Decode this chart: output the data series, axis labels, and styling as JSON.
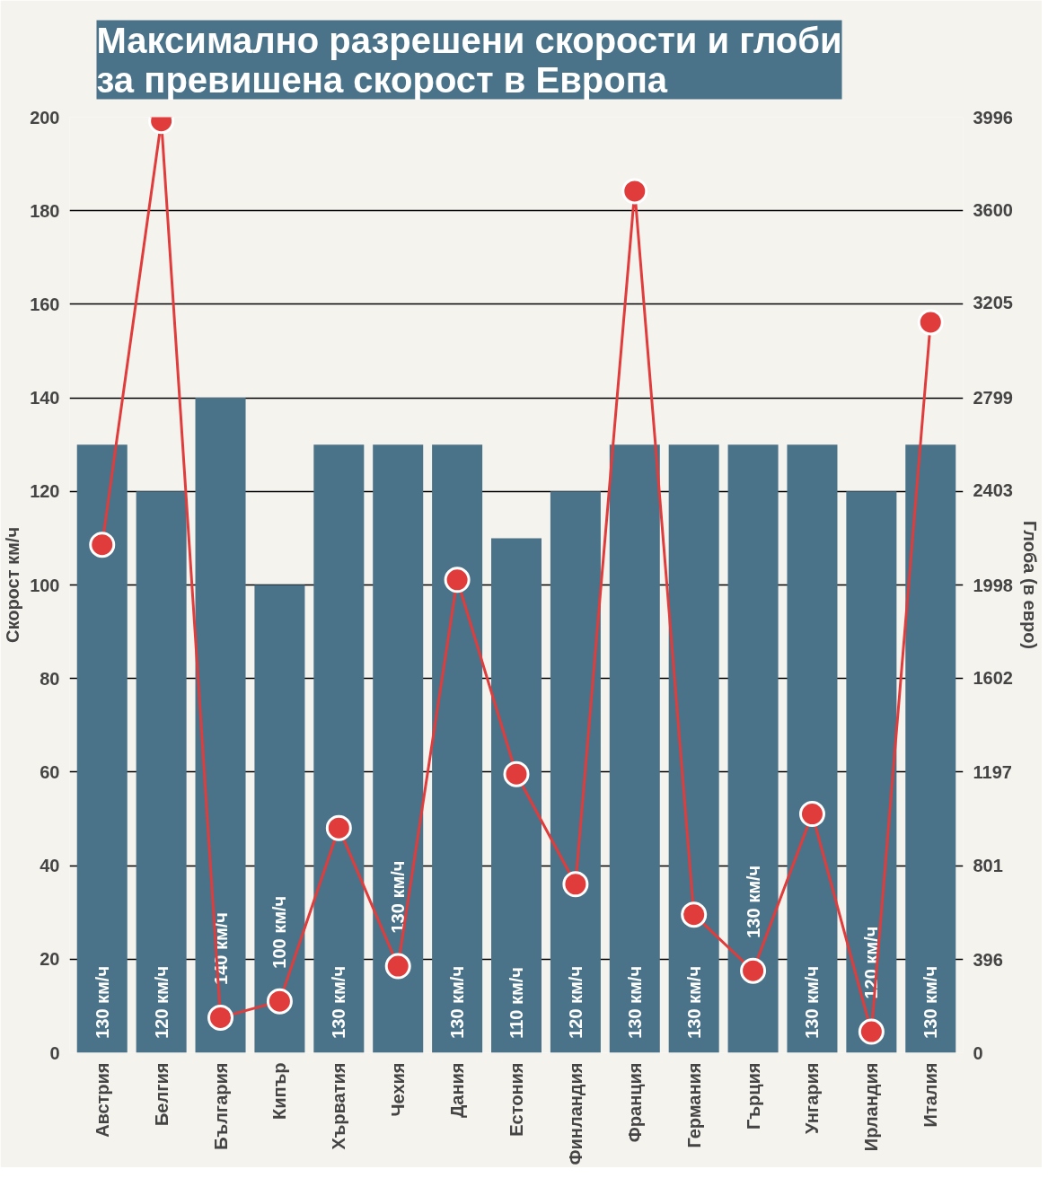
{
  "chart_data": {
    "type": "bar",
    "title": "Максимално разрешени скорости и глоби за превишена скорост в Европа",
    "categories": [
      "Австрия",
      "Белгия",
      "България",
      "Кипър",
      "Хърватия",
      "Чехия",
      "Дания",
      "Естония",
      "Финландия",
      "Франция",
      "Германия",
      "Гърция",
      "Унгария",
      "Ирландия",
      "Италия"
    ],
    "series": [
      {
        "color": "#4a7389",
        "values": [
          130,
          120,
          140,
          100,
          130,
          130,
          130,
          110,
          120,
          130,
          130,
          130,
          130,
          120,
          130
        ],
        "value_labels": [
          "130 км/ч",
          "120 км/ч",
          "140 км/ч",
          "100 км/ч",
          "130 км/ч",
          "130 км/ч",
          "130 км/ч",
          "110 км/ч",
          "120 км/ч",
          "130 км/ч",
          "130 км/ч",
          "130 км/ч",
          "130 км/ч",
          "120 км/ч",
          "130 км/ч"
        ]
      },
      {
        "type": "line",
        "axis": "y2",
        "color": "#e03c3c",
        "values": [
          2170,
          3980,
          150,
          220,
          960,
          370,
          2020,
          1190,
          720,
          3680,
          590,
          350,
          1020,
          90,
          3120
        ]
      }
    ],
    "ylabel": "Скорост км/ч",
    "y2label": "Глоба (в евро)",
    "ylim": [
      0,
      200
    ],
    "yticks": [
      0,
      20,
      40,
      60,
      80,
      100,
      120,
      140,
      160,
      180,
      200
    ],
    "y2lim": [
      0,
      3996
    ],
    "y2ticks": [
      0,
      396,
      801,
      1197,
      1602,
      1998,
      2403,
      2799,
      3205,
      3600,
      3996
    ],
    "grid": "y",
    "marker": "circle",
    "line_style": "solid"
  }
}
